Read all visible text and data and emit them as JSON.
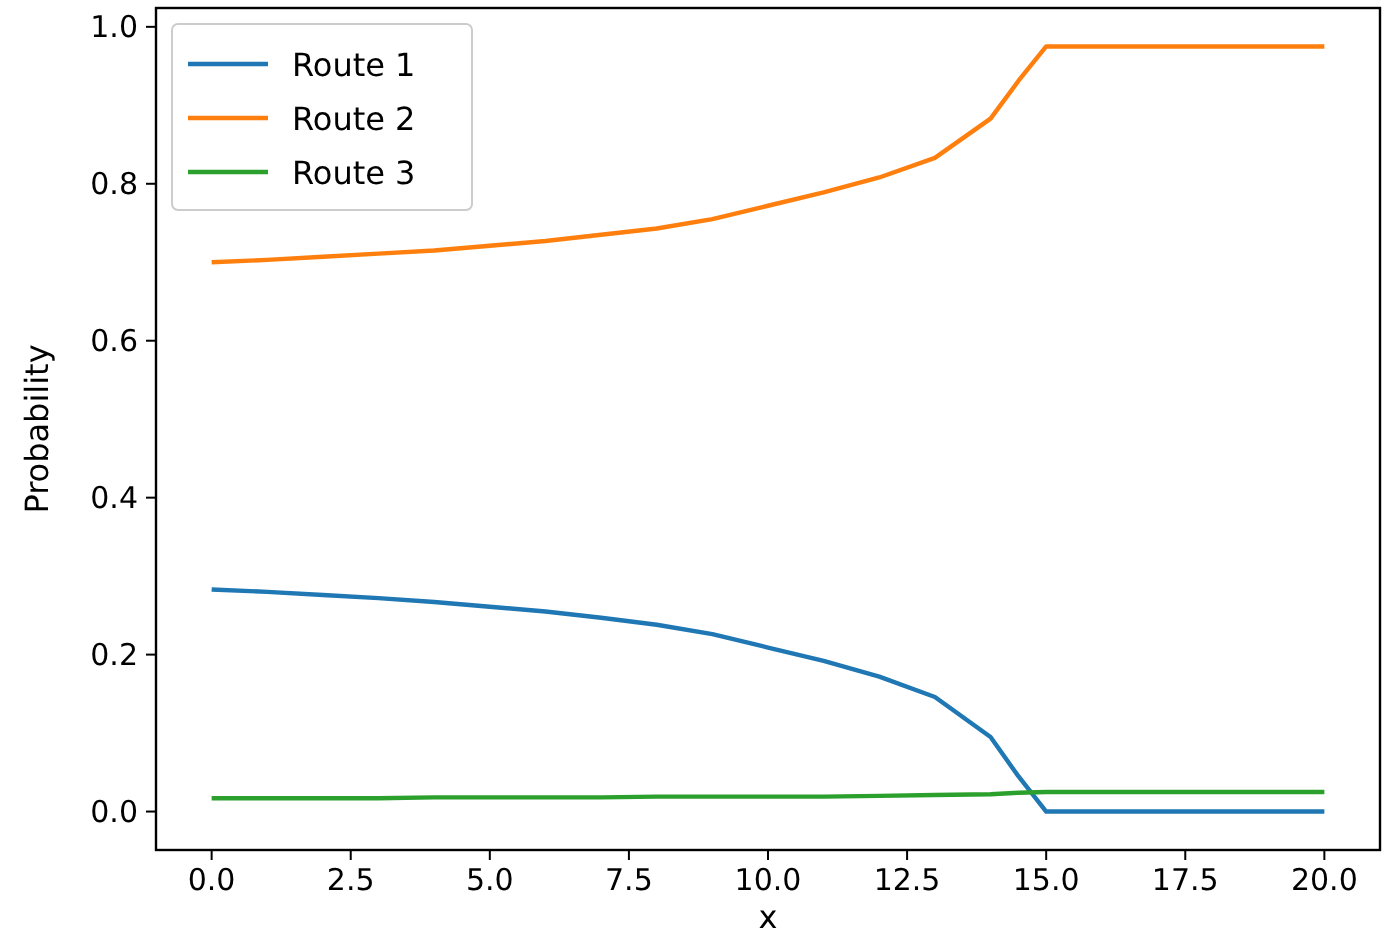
{
  "chart_data": {
    "type": "line",
    "xlabel": "x",
    "ylabel": "Probability",
    "x": [
      0,
      1,
      2,
      3,
      4,
      5,
      6,
      7,
      8,
      9,
      10,
      11,
      12,
      13,
      14,
      14.5,
      15,
      20
    ],
    "series": [
      {
        "name": "Route 1",
        "color": "#1f77b4",
        "values": [
          0.283,
          0.28,
          0.276,
          0.272,
          0.267,
          0.261,
          0.255,
          0.247,
          0.238,
          0.226,
          0.209,
          0.192,
          0.172,
          0.146,
          0.095,
          0.045,
          0,
          0
        ]
      },
      {
        "name": "Route 2",
        "color": "#ff7f0e",
        "values": [
          0.7,
          0.703,
          0.707,
          0.711,
          0.715,
          0.721,
          0.727,
          0.735,
          0.743,
          0.755,
          0.772,
          0.789,
          0.808,
          0.833,
          0.883,
          0.931,
          0.975,
          0.975
        ]
      },
      {
        "name": "Route 3",
        "color": "#2ca02c",
        "values": [
          0.017,
          0.017,
          0.017,
          0.017,
          0.018,
          0.018,
          0.018,
          0.018,
          0.019,
          0.019,
          0.019,
          0.019,
          0.02,
          0.021,
          0.022,
          0.024,
          0.025,
          0.025
        ]
      }
    ],
    "xlim": [
      -1,
      21
    ],
    "xticks": [
      {
        "value": 0,
        "label": "0.0"
      },
      {
        "value": 2.5,
        "label": "2.5"
      },
      {
        "value": 5,
        "label": "5.0"
      },
      {
        "value": 7.5,
        "label": "7.5"
      },
      {
        "value": 10,
        "label": "10.0"
      },
      {
        "value": 12.5,
        "label": "12.5"
      },
      {
        "value": 15,
        "label": "15.0"
      },
      {
        "value": 17.5,
        "label": "17.5"
      },
      {
        "value": 20,
        "label": "20.0"
      }
    ],
    "ylim": [
      -0.049,
      1.024
    ],
    "yticks": [
      {
        "value": 0,
        "label": "0.0"
      },
      {
        "value": 0.2,
        "label": "0.2"
      },
      {
        "value": 0.4,
        "label": "0.4"
      },
      {
        "value": 0.6,
        "label": "0.6"
      },
      {
        "value": 0.8,
        "label": "0.8"
      },
      {
        "value": 1,
        "label": "1.0"
      }
    ],
    "grid": false,
    "legend": "top left",
    "marker": "none",
    "line_style": "solid"
  }
}
